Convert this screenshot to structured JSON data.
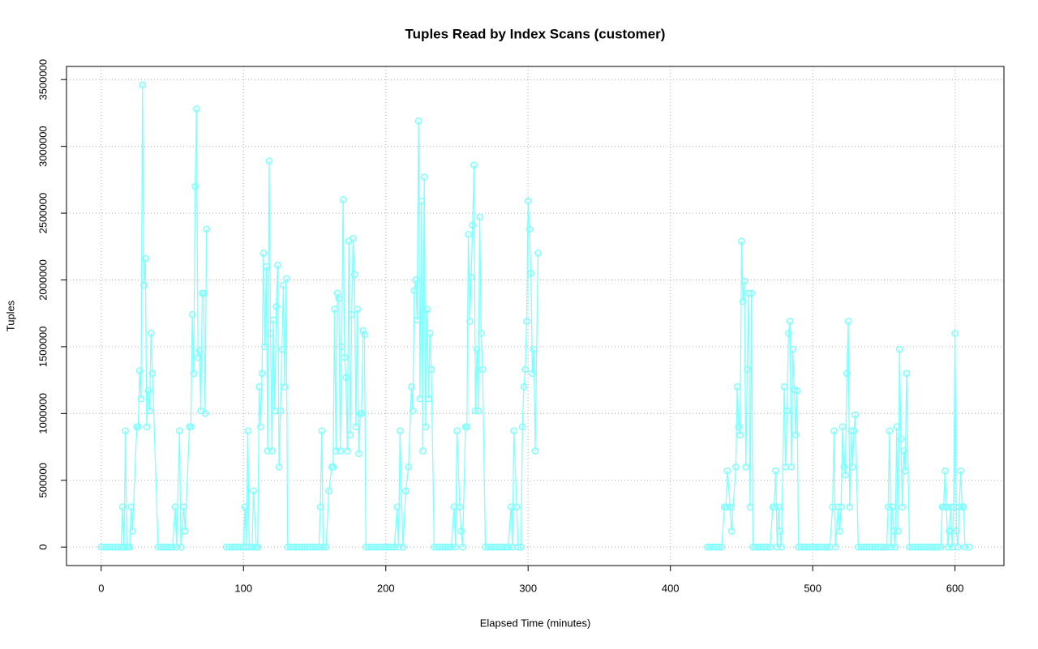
{
  "chart_data": {
    "type": "line",
    "title": "Tuples Read by Index Scans (customer)",
    "x_label": "Elapsed Time (minutes)",
    "y_label": "Tuples",
    "xlim": [
      -24.4,
      634.4
    ],
    "ylim": [
      -138400,
      3598400
    ],
    "xticks": [
      0,
      100,
      200,
      300,
      400,
      500,
      600
    ],
    "yticks": [
      0,
      500000,
      1000000,
      1500000,
      2000000,
      2500000,
      3000000,
      3500000
    ],
    "grid": true,
    "series": [
      {
        "name": "customer",
        "color": "#80ffff",
        "x": [
          0,
          2,
          4,
          6,
          8,
          10,
          12,
          14,
          15,
          16,
          17,
          18,
          19,
          20,
          21,
          22,
          25,
          26,
          27,
          28,
          29,
          30,
          31,
          32,
          33,
          34,
          35,
          36,
          40,
          42,
          44,
          46,
          48,
          50,
          52,
          53,
          55,
          56,
          58,
          59,
          62,
          63,
          64,
          65,
          66,
          67,
          68,
          69,
          70,
          71,
          72,
          73,
          74,
          80,
          88,
          90,
          92,
          94,
          96,
          98,
          100,
          101,
          102,
          103,
          104,
          106,
          107,
          109,
          110,
          111,
          112,
          113,
          114,
          115,
          116,
          117,
          118,
          119,
          120,
          121,
          122,
          123,
          124,
          125,
          126,
          127,
          128,
          129,
          130,
          131,
          133,
          135,
          137,
          139,
          141,
          143,
          145,
          147,
          149,
          151,
          153,
          154,
          155,
          156,
          158,
          160,
          162,
          163,
          164,
          165,
          166,
          167,
          168,
          169,
          170,
          171,
          172,
          173,
          174,
          175,
          176,
          177,
          178,
          179,
          180,
          181,
          182,
          183,
          184,
          185,
          186,
          188,
          190,
          192,
          194,
          196,
          198,
          200,
          202,
          204,
          206,
          208,
          209,
          210,
          212,
          214,
          216,
          218,
          219,
          220,
          221,
          222,
          223,
          224,
          225,
          226,
          227,
          228,
          229,
          230,
          231,
          232,
          234,
          236,
          238,
          240,
          242,
          244,
          246,
          248,
          249,
          250,
          252,
          253,
          254,
          256,
          257,
          258,
          259,
          260,
          261,
          262,
          263,
          264,
          265,
          266,
          267,
          268,
          270,
          272,
          274,
          276,
          278,
          280,
          282,
          284,
          286,
          288,
          289,
          290,
          292,
          293,
          295,
          296,
          297,
          298,
          299,
          300,
          301,
          302,
          303,
          304,
          305,
          307,
          320,
          426,
          428,
          430,
          432,
          434,
          436,
          438,
          439,
          440,
          442,
          443,
          446,
          447,
          448,
          449,
          450,
          451,
          452,
          453,
          454,
          455,
          456,
          457,
          458,
          460,
          462,
          464,
          466,
          468,
          470,
          472,
          473,
          474,
          475,
          476,
          477,
          478,
          480,
          481,
          482,
          483,
          484,
          485,
          486,
          487,
          488,
          489,
          490,
          492,
          494,
          496,
          498,
          500,
          502,
          504,
          506,
          508,
          510,
          512,
          514,
          515,
          516,
          518,
          519,
          520,
          521,
          522,
          523,
          524,
          525,
          526,
          527,
          528,
          529,
          530,
          532,
          534,
          536,
          538,
          540,
          542,
          544,
          546,
          548,
          550,
          552,
          553,
          554,
          555,
          556,
          557,
          558,
          559,
          560,
          561,
          562,
          563,
          564,
          565,
          566,
          568,
          570,
          572,
          574,
          576,
          578,
          580,
          582,
          584,
          586,
          588,
          590,
          591,
          592,
          593,
          594,
          595,
          596,
          597,
          598,
          599,
          600,
          601,
          602,
          603,
          604,
          605,
          606,
          607,
          610
        ],
        "values": [
          0,
          0,
          0,
          0,
          0,
          0,
          0,
          0,
          300000,
          0,
          870000,
          0,
          0,
          0,
          300000,
          120000,
          900000,
          900000,
          1320000,
          1110000,
          3460000,
          1960000,
          2160000,
          900000,
          1170000,
          1020000,
          1600000,
          1300000,
          0,
          0,
          0,
          0,
          0,
          0,
          300000,
          0,
          870000,
          0,
          300000,
          120000,
          900000,
          900000,
          1740000,
          1300000,
          2700000,
          3280000,
          1420000,
          1470000,
          1020000,
          1900000,
          1900000,
          1000000,
          2380000,
          null,
          0,
          0,
          0,
          0,
          0,
          0,
          0,
          300000,
          0,
          870000,
          0,
          0,
          420000,
          0,
          0,
          1200000,
          900000,
          1300000,
          2200000,
          1500000,
          2100000,
          720000,
          2890000,
          1600000,
          720000,
          1700000,
          1020000,
          1800000,
          2110000,
          600000,
          1020000,
          1480000,
          1960000,
          1200000,
          2010000,
          0,
          0,
          0,
          0,
          0,
          0,
          0,
          0,
          0,
          0,
          0,
          0,
          300000,
          870000,
          0,
          0,
          420000,
          600000,
          600000,
          1780000,
          720000,
          1900000,
          1860000,
          720000,
          1500000,
          2600000,
          1420000,
          1270000,
          720000,
          2290000,
          840000,
          1740000,
          2310000,
          2040000,
          900000,
          1780000,
          700000,
          1000000,
          1000000,
          1620000,
          1590000,
          0,
          0,
          0,
          0,
          0,
          0,
          0,
          0,
          0,
          0,
          0,
          300000,
          0,
          870000,
          0,
          420000,
          600000,
          1200000,
          1020000,
          1920000,
          2000000,
          1700000,
          3190000,
          1110000,
          2590000,
          720000,
          2770000,
          900000,
          1780000,
          1110000,
          1600000,
          1330000,
          0,
          0,
          0,
          0,
          0,
          0,
          0,
          300000,
          0,
          870000,
          300000,
          120000,
          0,
          900000,
          900000,
          2340000,
          1690000,
          2020000,
          2410000,
          2860000,
          1020000,
          1480000,
          1020000,
          2470000,
          1600000,
          1330000,
          0,
          0,
          0,
          0,
          0,
          0,
          0,
          0,
          0,
          300000,
          0,
          870000,
          300000,
          0,
          0,
          900000,
          1200000,
          1330000,
          1690000,
          2590000,
          2380000,
          2050000,
          1300000,
          1480000,
          720000,
          2200000,
          null,
          0,
          0,
          0,
          0,
          0,
          0,
          300000,
          300000,
          570000,
          300000,
          120000,
          600000,
          1200000,
          900000,
          840000,
          2290000,
          1840000,
          1990000,
          600000,
          1330000,
          1900000,
          300000,
          1900000,
          0,
          0,
          0,
          0,
          0,
          0,
          0,
          300000,
          300000,
          570000,
          0,
          300000,
          120000,
          0,
          1200000,
          600000,
          1020000,
          1600000,
          1690000,
          600000,
          1480000,
          1180000,
          840000,
          1170000,
          0,
          0,
          0,
          0,
          0,
          0,
          0,
          0,
          0,
          0,
          0,
          0,
          300000,
          870000,
          0,
          300000,
          120000,
          300000,
          900000,
          600000,
          540000,
          1300000,
          1690000,
          300000,
          870000,
          600000,
          870000,
          990000,
          0,
          0,
          0,
          0,
          0,
          0,
          0,
          0,
          0,
          0,
          0,
          300000,
          870000,
          0,
          300000,
          120000,
          0,
          900000,
          120000,
          1480000,
          810000,
          300000,
          720000,
          570000,
          1300000,
          0,
          0,
          0,
          0,
          0,
          0,
          0,
          0,
          0,
          0,
          0,
          0,
          300000,
          300000,
          570000,
          300000,
          0,
          120000,
          300000,
          0,
          300000,
          1600000,
          120000,
          0,
          300000,
          570000,
          300000,
          300000,
          0,
          0
        ]
      }
    ]
  }
}
